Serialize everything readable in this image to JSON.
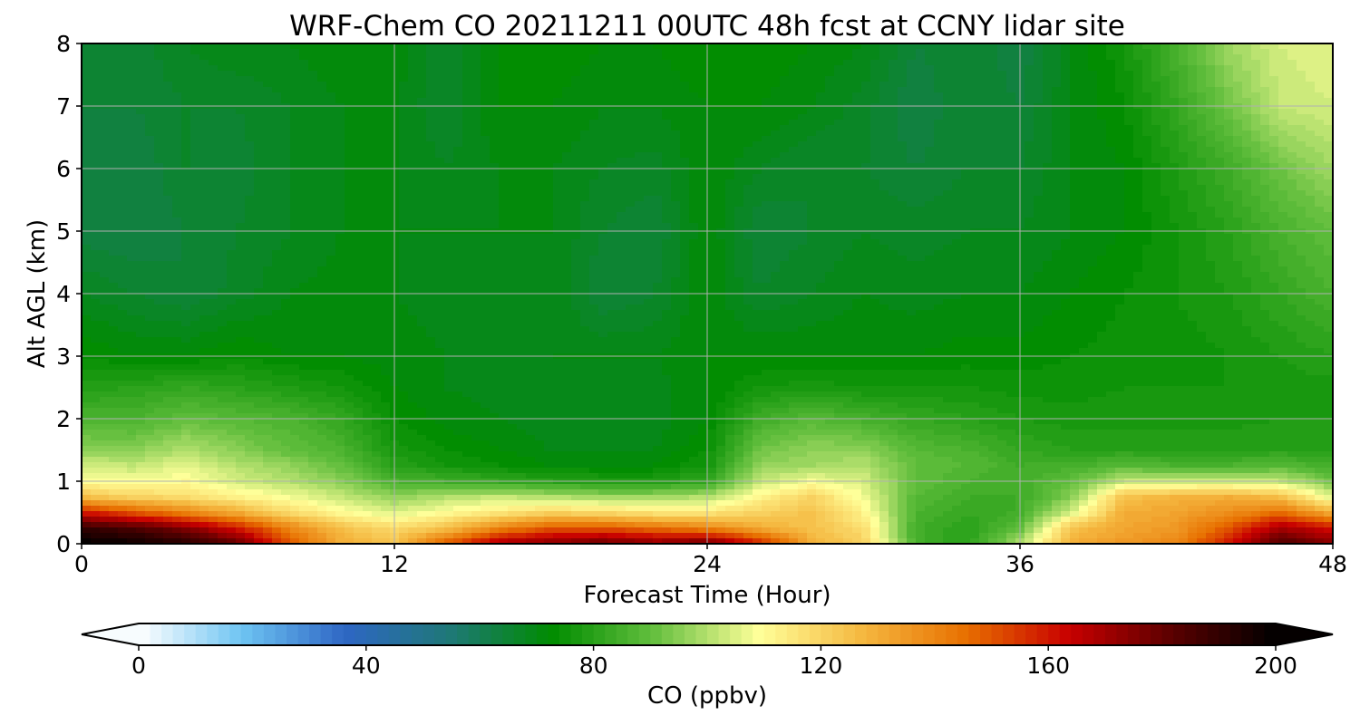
{
  "chart_data": {
    "type": "heatmap",
    "title": "WRF-Chem CO  20211211 00UTC 48h fcst at CCNY lidar site",
    "xlabel": "Forecast Time (Hour)",
    "ylabel": "Alt AGL (km)",
    "xlim": [
      0,
      48
    ],
    "ylim": [
      0,
      8
    ],
    "x_ticks": [
      0,
      12,
      24,
      36,
      48
    ],
    "y_ticks": [
      0,
      1,
      2,
      3,
      4,
      5,
      6,
      7,
      8
    ],
    "grid": true,
    "colorbar": {
      "label": "CO  (ppbv)",
      "range": [
        0,
        200
      ],
      "ticks": [
        0,
        40,
        80,
        120,
        160,
        200
      ],
      "extend": "both",
      "orientation": "horizontal",
      "colors": [
        "#ffffff",
        "#6ec4f2",
        "#2e66c4",
        "#1f7878",
        "#008c00",
        "#66c040",
        "#ffff99",
        "#f5b840",
        "#e87000",
        "#c80000",
        "#5a0000",
        "#000000"
      ]
    },
    "x": [
      0,
      2,
      4,
      6,
      8,
      10,
      12,
      14,
      16,
      18,
      20,
      22,
      24,
      26,
      28,
      30,
      32,
      34,
      36,
      38,
      40,
      42,
      44,
      46,
      48
    ],
    "y": [
      0,
      0.25,
      0.5,
      0.75,
      1,
      1.25,
      1.5,
      2,
      2.5,
      3,
      4,
      5,
      6,
      7,
      8
    ],
    "values": [
      [
        200,
        198,
        192,
        180,
        150,
        130,
        125,
        150,
        170,
        175,
        180,
        175,
        180,
        160,
        130,
        120,
        85,
        80,
        100,
        130,
        135,
        140,
        160,
        185,
        175
      ],
      [
        190,
        185,
        175,
        160,
        140,
        125,
        118,
        125,
        140,
        150,
        150,
        145,
        140,
        130,
        125,
        118,
        85,
        80,
        90,
        125,
        132,
        135,
        150,
        170,
        160
      ],
      [
        160,
        150,
        140,
        130,
        118,
        110,
        105,
        110,
        115,
        120,
        118,
        115,
        115,
        120,
        125,
        112,
        86,
        82,
        84,
        105,
        130,
        132,
        138,
        145,
        130
      ],
      [
        125,
        120,
        118,
        112,
        108,
        102,
        96,
        100,
        102,
        100,
        98,
        98,
        100,
        112,
        120,
        108,
        88,
        84,
        84,
        95,
        125,
        128,
        130,
        125,
        105
      ],
      [
        110,
        108,
        110,
        104,
        100,
        95,
        86,
        84,
        82,
        80,
        78,
        78,
        82,
        102,
        108,
        104,
        90,
        86,
        84,
        90,
        103,
        103,
        103,
        102,
        92
      ],
      [
        104,
        102,
        106,
        100,
        96,
        90,
        80,
        76,
        74,
        72,
        72,
        72,
        76,
        96,
        98,
        100,
        90,
        88,
        84,
        85,
        88,
        86,
        86,
        88,
        84
      ],
      [
        96,
        95,
        100,
        95,
        90,
        86,
        77,
        74,
        72,
        70,
        70,
        70,
        74,
        92,
        96,
        96,
        88,
        86,
        82,
        80,
        80,
        80,
        80,
        80,
        80
      ],
      [
        86,
        86,
        90,
        88,
        86,
        82,
        74,
        71,
        70,
        68,
        68,
        69,
        72,
        84,
        88,
        85,
        82,
        80,
        78,
        77,
        77,
        77,
        77,
        78,
        78
      ],
      [
        79,
        80,
        82,
        80,
        78,
        76,
        72,
        70,
        69,
        68,
        68,
        69,
        72,
        76,
        77,
        76,
        76,
        76,
        75,
        75,
        76,
        76,
        76,
        77,
        77
      ],
      [
        74,
        72,
        72,
        74,
        72,
        72,
        71,
        70,
        69,
        70,
        70,
        70,
        72,
        72,
        72,
        72,
        72,
        73,
        73,
        74,
        75,
        75,
        76,
        78,
        80
      ],
      [
        68,
        66,
        64,
        67,
        70,
        71,
        70,
        69,
        68,
        70,
        64,
        66,
        72,
        66,
        68,
        70,
        69,
        70,
        70,
        72,
        74,
        76,
        78,
        82,
        86
      ],
      [
        63,
        62,
        64,
        66,
        68,
        70,
        70,
        70,
        70,
        70,
        66,
        64,
        72,
        64,
        66,
        68,
        67,
        68,
        68,
        70,
        72,
        76,
        80,
        86,
        90
      ],
      [
        62,
        62,
        66,
        65,
        68,
        70,
        70,
        68,
        70,
        70,
        68,
        67,
        72,
        68,
        66,
        66,
        64,
        66,
        66,
        70,
        72,
        78,
        84,
        92,
        98
      ],
      [
        64,
        64,
        66,
        66,
        68,
        70,
        70,
        66,
        72,
        72,
        70,
        70,
        72,
        72,
        70,
        67,
        62,
        66,
        64,
        70,
        74,
        82,
        92,
        102,
        104
      ],
      [
        66,
        65,
        68,
        70,
        70,
        72,
        72,
        66,
        72,
        74,
        72,
        72,
        74,
        74,
        72,
        70,
        64,
        66,
        62,
        70,
        76,
        86,
        98,
        104,
        106
      ]
    ]
  }
}
